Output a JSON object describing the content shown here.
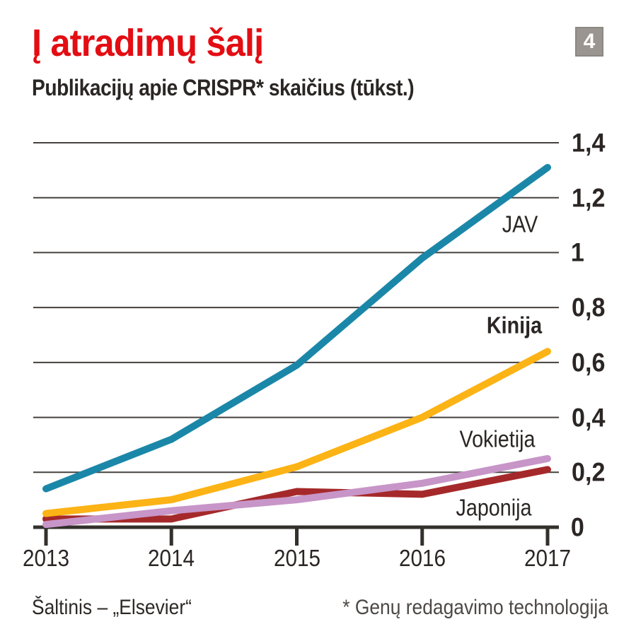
{
  "header": {
    "title": "Į atradimų šalį",
    "subtitle": "Publikacijų apie CRISPR* skaičius (tūkst.)",
    "page_badge": "4"
  },
  "chart_data": {
    "type": "line",
    "title": "Į atradimų šalį",
    "subtitle": "Publikacijų apie CRISPR* skaičius (tūkst.)",
    "xlabel": "",
    "ylabel": "tūkst.",
    "x": [
      2013,
      2014,
      2015,
      2016,
      2017
    ],
    "x_tick_labels": [
      "2013",
      "2014",
      "2015",
      "2016",
      "2017"
    ],
    "ylim": [
      0,
      1.4
    ],
    "grid": "horizontal",
    "y_axis_side": "right",
    "legend_position": "inline-labels",
    "y_ticks": [
      {
        "value": 0,
        "label": "0"
      },
      {
        "value": 0.2,
        "label": "0,2"
      },
      {
        "value": 0.4,
        "label": "0,4"
      },
      {
        "value": 0.6,
        "label": "0,6"
      },
      {
        "value": 0.8,
        "label": "0,8"
      },
      {
        "value": 1,
        "label": "1"
      },
      {
        "value": 1.2,
        "label": "1,2"
      },
      {
        "value": 1.4,
        "label": "1,4"
      }
    ],
    "series": [
      {
        "name": "JAV",
        "color": "#1b87a8",
        "values": [
          0.14,
          0.32,
          0.59,
          0.98,
          1.31
        ]
      },
      {
        "name": "Kinija",
        "color": "#fcb315",
        "values": [
          0.05,
          0.1,
          0.22,
          0.4,
          0.64
        ]
      },
      {
        "name": "Vokietija",
        "color": "#c795c8",
        "values": [
          0.01,
          0.06,
          0.1,
          0.16,
          0.25
        ]
      },
      {
        "name": "Japonija",
        "color": "#a5292a",
        "values": [
          0.03,
          0.03,
          0.13,
          0.12,
          0.21
        ]
      }
    ],
    "colors": {
      "accent_title": "#e30d13",
      "text": "#2b2624",
      "gridline": "#45413e",
      "axis": "#34302c"
    }
  },
  "footer": {
    "source": "Šaltinis – „Elsevier“",
    "footnote": "* Genų redagavimo technologija"
  }
}
